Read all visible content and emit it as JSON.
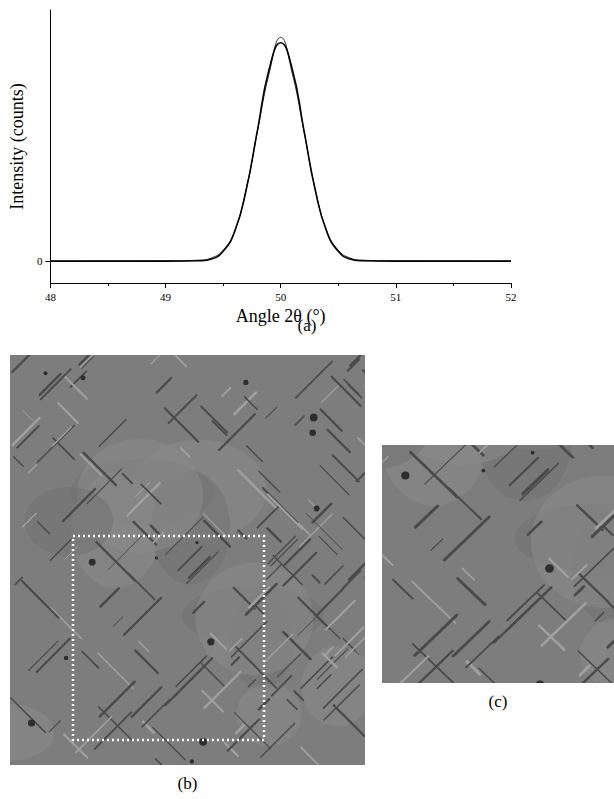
{
  "chart_data": {
    "type": "line",
    "title": "(a)",
    "x_label": "Angle 2θ (°)",
    "y_label": "Intensity (counts)",
    "x": [
      48,
      49,
      49.3,
      49.4,
      49.5,
      49.6,
      49.7,
      49.8,
      49.9,
      50,
      50.1,
      50.2,
      50.3,
      50.4,
      50.5,
      50.6,
      50.7,
      51,
      52
    ],
    "series": [
      {
        "color": "#000000",
        "line_style": "solid",
        "values": [
          0,
          0,
          0.004,
          0.02,
          0.09,
          0.27,
          0.65,
          1.21,
          1.76,
          2.0,
          1.76,
          1.21,
          0.65,
          0.27,
          0.09,
          0.02,
          0.004,
          0,
          0
        ]
      },
      {
        "color": "#000000",
        "line_style": "solid",
        "values": [
          0,
          0.002,
          0.01,
          0.03,
          0.1,
          0.28,
          0.66,
          1.2,
          1.72,
          2.05,
          1.72,
          1.2,
          0.66,
          0.28,
          0.1,
          0.03,
          0.01,
          0.002,
          0
        ]
      }
    ],
    "xlim": [
      48,
      52
    ],
    "xticks": [
      48,
      49,
      50,
      51,
      52
    ],
    "ylim": [
      -0.2,
      2.3
    ],
    "yticks": [
      0
    ],
    "grid": false
  },
  "images": [
    {
      "label": "(b)"
    },
    {
      "label": "(c)"
    }
  ]
}
